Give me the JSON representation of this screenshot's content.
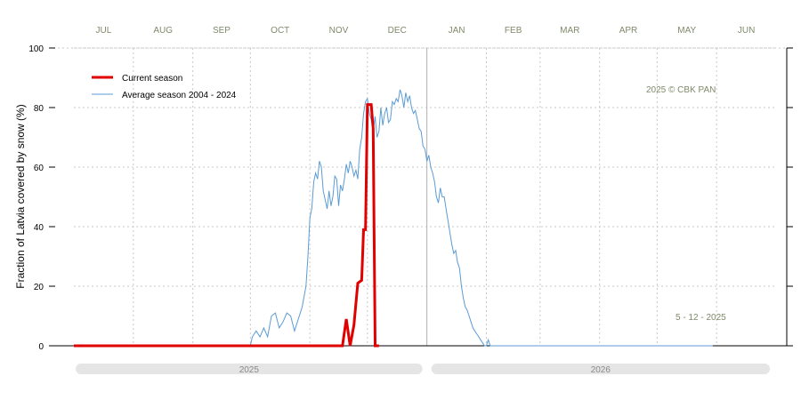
{
  "chart_data": {
    "type": "line",
    "xlabel": "",
    "ylabel": "Fraction of  Latvia  covered by snow (%)",
    "ylim": [
      0,
      100
    ],
    "yticks": [
      "0",
      "20",
      "40",
      "60",
      "80",
      "100"
    ],
    "months": [
      "JUL",
      "AUG",
      "SEP",
      "OCT",
      "NOV",
      "DEC",
      "JAN",
      "FEB",
      "MAR",
      "APR",
      "MAY",
      "JUN"
    ],
    "years": [
      "2025",
      "2026"
    ],
    "grid": true,
    "legend_position": "top-left",
    "annotations": {
      "copyright": "2025  © CBK PAN",
      "date": "5 - 12 - 2025"
    },
    "series": [
      {
        "name": "Current season",
        "color": "#e00000",
        "points": [
          [
            0,
            0
          ],
          [
            140,
            0
          ],
          [
            142,
            9
          ],
          [
            144,
            0
          ],
          [
            146,
            7
          ],
          [
            148,
            21
          ],
          [
            150,
            22
          ],
          [
            151,
            39
          ],
          [
            152,
            39
          ],
          [
            153,
            81
          ],
          [
            154,
            81
          ],
          [
            155,
            81
          ],
          [
            156,
            73
          ],
          [
            157,
            0
          ],
          [
            158,
            0
          ],
          [
            159,
            0
          ]
        ]
      },
      {
        "name": "Average season 2004 - 2024",
        "color": "#5b9bd5",
        "points": [
          [
            0,
            0
          ],
          [
            60,
            0
          ],
          [
            92,
            0
          ],
          [
            93,
            3
          ],
          [
            95,
            5
          ],
          [
            97,
            3
          ],
          [
            99,
            6
          ],
          [
            101,
            3
          ],
          [
            103,
            10
          ],
          [
            105,
            11
          ],
          [
            107,
            6
          ],
          [
            109,
            8
          ],
          [
            111,
            11
          ],
          [
            113,
            10
          ],
          [
            115,
            5
          ],
          [
            117,
            9
          ],
          [
            119,
            13
          ],
          [
            121,
            20
          ],
          [
            122,
            30
          ],
          [
            123,
            43
          ],
          [
            124,
            46
          ],
          [
            125,
            55
          ],
          [
            126,
            58
          ],
          [
            127,
            56
          ],
          [
            128,
            62
          ],
          [
            129,
            60
          ],
          [
            130,
            52
          ],
          [
            131,
            49
          ],
          [
            132,
            46
          ],
          [
            133,
            52
          ],
          [
            134,
            47
          ],
          [
            135,
            50
          ],
          [
            136,
            57
          ],
          [
            137,
            56
          ],
          [
            138,
            47
          ],
          [
            139,
            54
          ],
          [
            140,
            52
          ],
          [
            141,
            56
          ],
          [
            142,
            61
          ],
          [
            143,
            58
          ],
          [
            144,
            62
          ],
          [
            145,
            60
          ],
          [
            146,
            57
          ],
          [
            147,
            59
          ],
          [
            148,
            56
          ],
          [
            149,
            66
          ],
          [
            150,
            70
          ],
          [
            151,
            78
          ],
          [
            152,
            82
          ],
          [
            153,
            83
          ],
          [
            154,
            78
          ],
          [
            155,
            76
          ],
          [
            156,
            72
          ],
          [
            157,
            77
          ],
          [
            158,
            70
          ],
          [
            159,
            72
          ],
          [
            160,
            80
          ],
          [
            161,
            74
          ],
          [
            162,
            78
          ],
          [
            163,
            80
          ],
          [
            164,
            75
          ],
          [
            165,
            76
          ],
          [
            166,
            82
          ],
          [
            167,
            81
          ],
          [
            168,
            83
          ],
          [
            169,
            82
          ],
          [
            170,
            86
          ],
          [
            171,
            84
          ],
          [
            172,
            80
          ],
          [
            173,
            85
          ],
          [
            174,
            82
          ],
          [
            175,
            84
          ],
          [
            176,
            80
          ],
          [
            177,
            78
          ],
          [
            178,
            79
          ],
          [
            179,
            76
          ],
          [
            180,
            73
          ],
          [
            181,
            72
          ],
          [
            182,
            67
          ],
          [
            183,
            66
          ],
          [
            184,
            62
          ],
          [
            185,
            64
          ],
          [
            186,
            60
          ],
          [
            187,
            58
          ],
          [
            188,
            55
          ],
          [
            189,
            50
          ],
          [
            190,
            48
          ],
          [
            191,
            53
          ],
          [
            192,
            50
          ],
          [
            193,
            50
          ],
          [
            194,
            46
          ],
          [
            195,
            42
          ],
          [
            196,
            38
          ],
          [
            197,
            34
          ],
          [
            198,
            31
          ],
          [
            199,
            32
          ],
          [
            200,
            28
          ],
          [
            201,
            26
          ],
          [
            202,
            20
          ],
          [
            203,
            16
          ],
          [
            204,
            13
          ],
          [
            205,
            12
          ],
          [
            206,
            10
          ],
          [
            207,
            8
          ],
          [
            208,
            6
          ],
          [
            209,
            5
          ],
          [
            210,
            4
          ],
          [
            211,
            3
          ],
          [
            212,
            2
          ],
          [
            213,
            1
          ],
          [
            214,
            0
          ],
          [
            215,
            0
          ],
          [
            216,
            2
          ],
          [
            217,
            0
          ],
          [
            218,
            0
          ],
          [
            220,
            0
          ],
          [
            240,
            0
          ],
          [
            270,
            0
          ],
          [
            300,
            0
          ],
          [
            333,
            0
          ]
        ]
      }
    ]
  }
}
